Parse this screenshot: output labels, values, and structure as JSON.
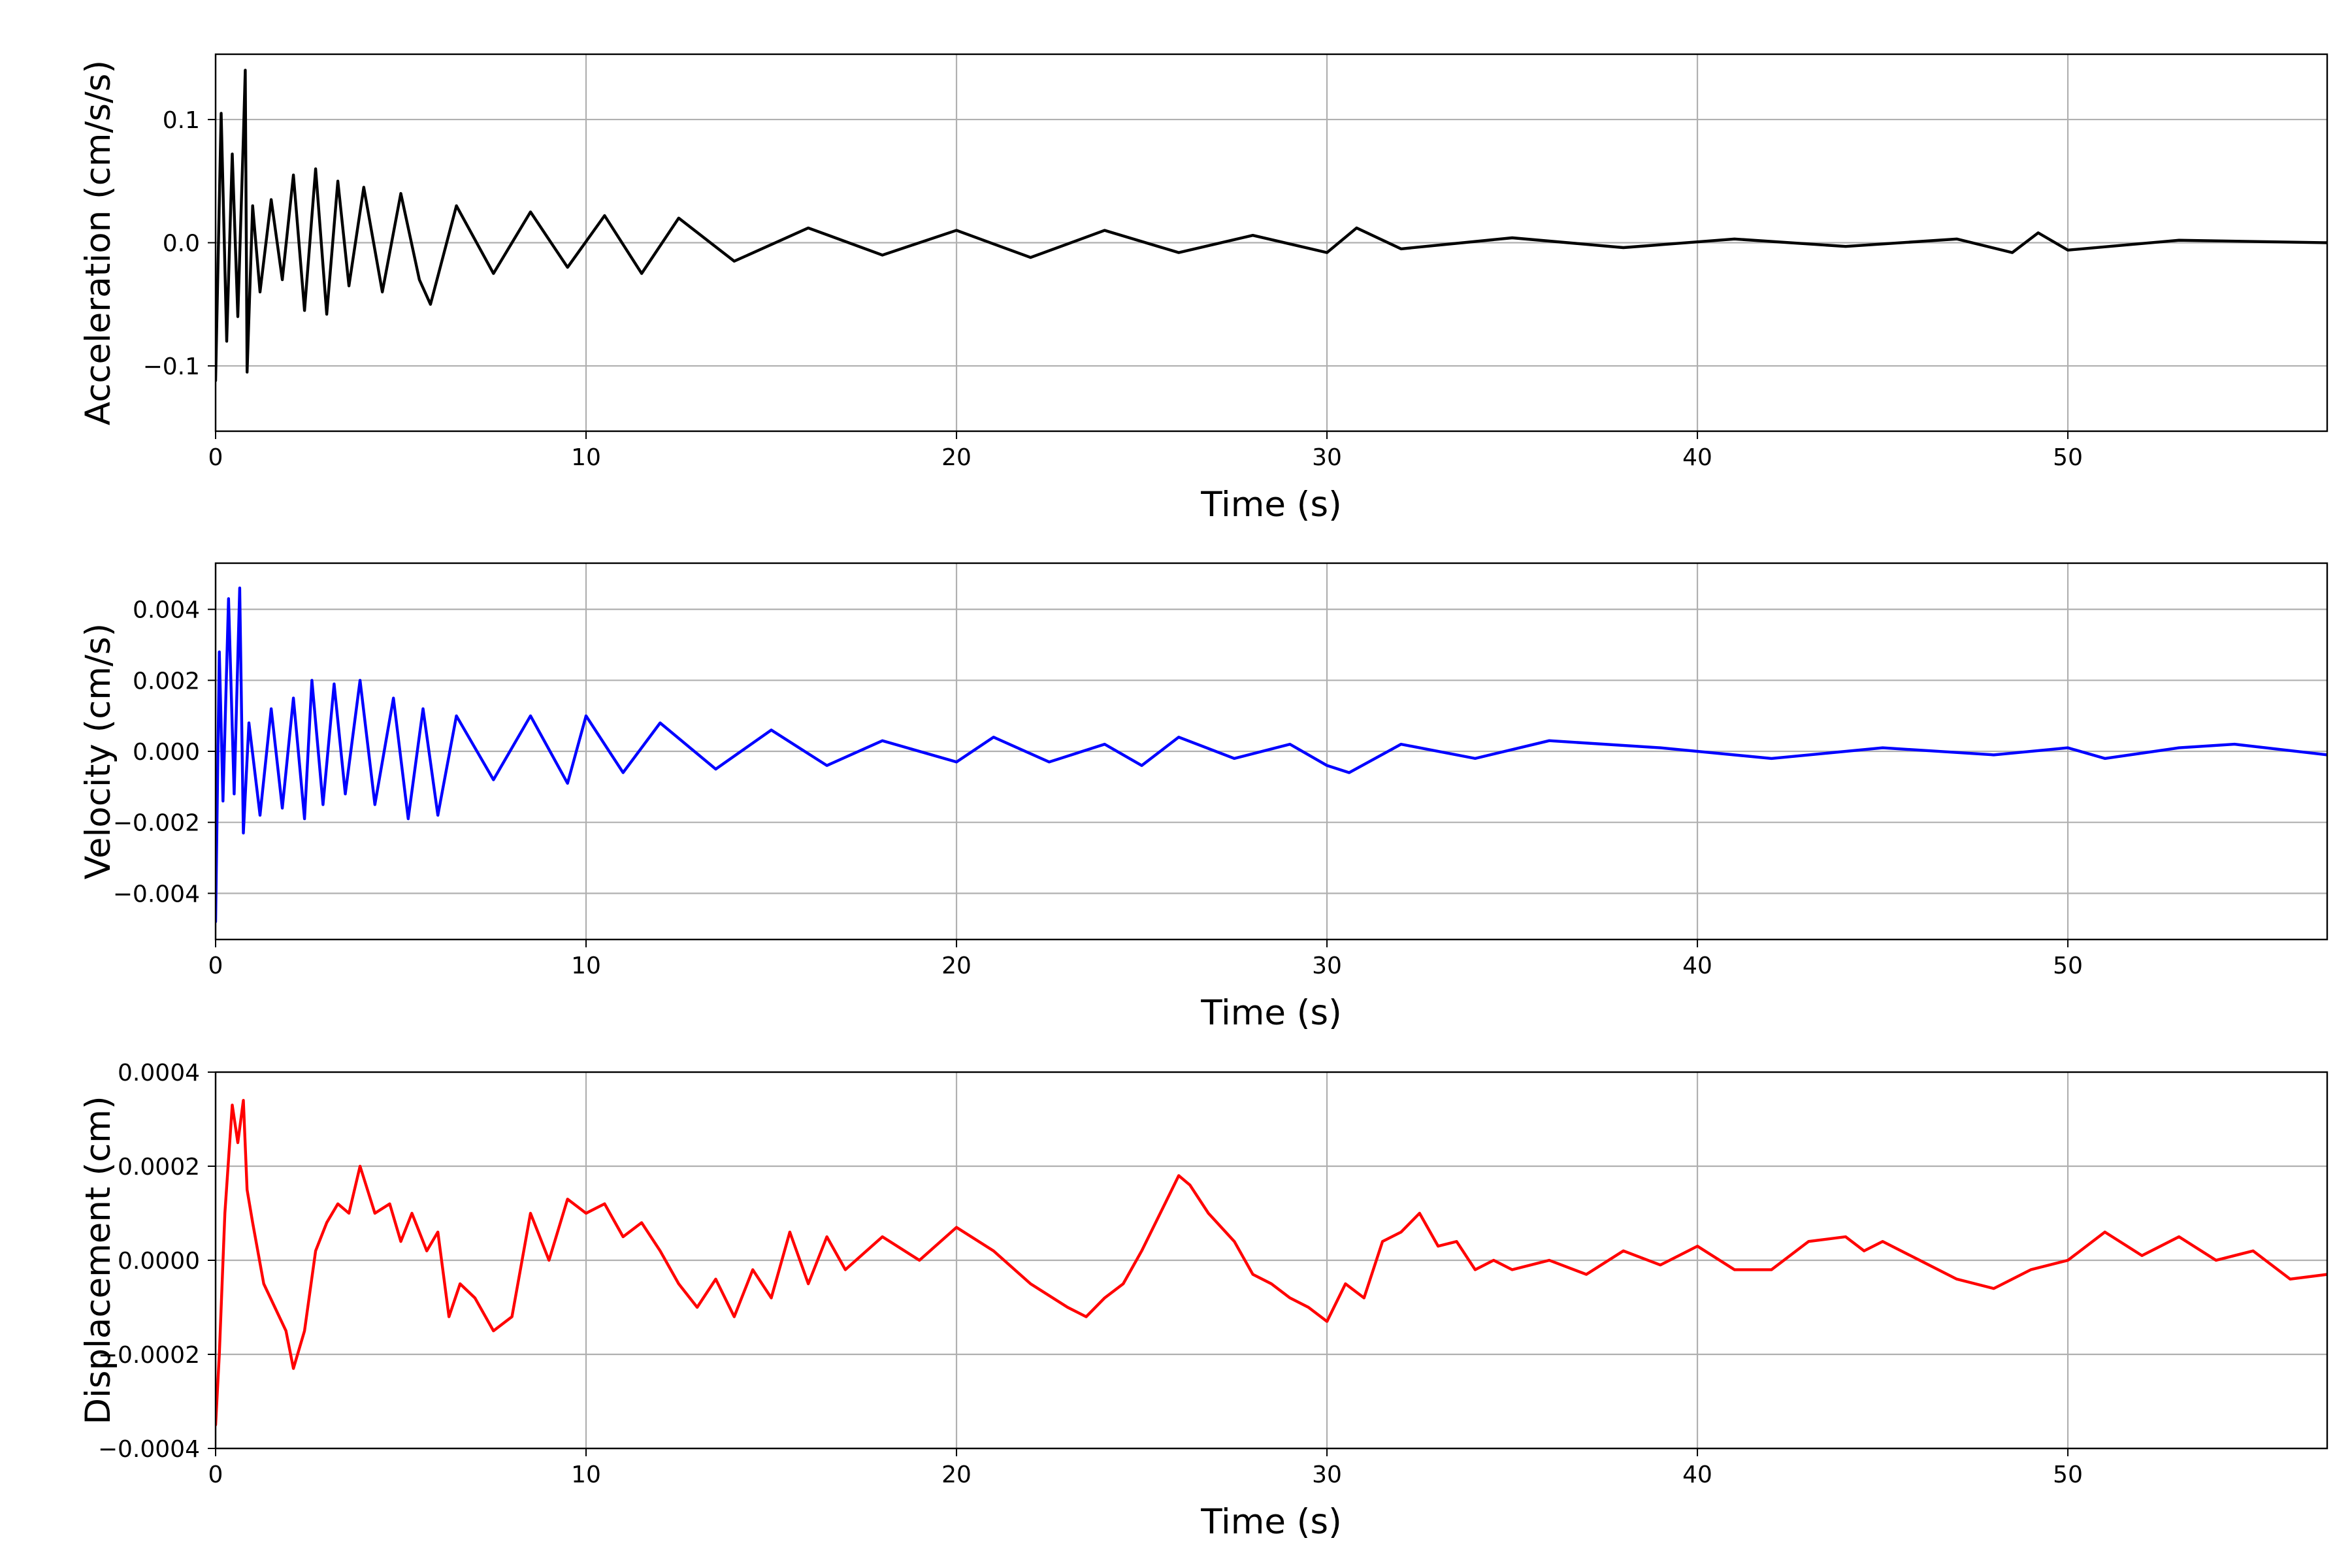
{
  "chart_data": [
    {
      "type": "line",
      "xlabel": "Time (s)",
      "ylabel": "Acceleration (cm/s/s)",
      "xlim": [
        0,
        57
      ],
      "ylim": [
        -0.153,
        0.153
      ],
      "xticks": [
        0,
        10,
        20,
        30,
        40,
        50
      ],
      "xtick_labels": [
        "0",
        "10",
        "20",
        "30",
        "40",
        "50"
      ],
      "yticks": [
        -0.1,
        0.0,
        0.1
      ],
      "ytick_labels": [
        "−0.1",
        "0.0",
        "0.1"
      ],
      "grid": true,
      "color": "#000000",
      "series": [
        {
          "x": [
            0,
            0.15,
            0.3,
            0.45,
            0.6,
            0.75,
            0.8,
            0.85,
            1.0,
            1.2,
            1.5,
            1.8,
            2.1,
            2.4,
            2.7,
            3.0,
            3.3,
            3.6,
            4.0,
            4.5,
            5.0,
            5.5,
            5.8,
            6.5,
            7.5,
            8.5,
            9.5,
            10.5,
            11.5,
            12.5,
            14.0,
            16.0,
            18.0,
            20.0,
            22.0,
            24.0,
            26.0,
            28.0,
            30.0,
            30.8,
            32.0,
            35.0,
            38.0,
            41.0,
            44.0,
            47.0,
            48.5,
            49.2,
            50.0,
            53.0,
            57.0
          ],
          "y": [
            -0.112,
            0.105,
            -0.08,
            0.072,
            -0.06,
            0.085,
            0.14,
            -0.105,
            0.03,
            -0.04,
            0.035,
            -0.03,
            0.055,
            -0.055,
            0.06,
            -0.058,
            0.05,
            -0.035,
            0.045,
            -0.04,
            0.04,
            -0.03,
            -0.05,
            0.03,
            -0.025,
            0.025,
            -0.02,
            0.022,
            -0.025,
            0.02,
            -0.015,
            0.012,
            -0.01,
            0.01,
            -0.012,
            0.01,
            -0.008,
            0.006,
            -0.008,
            0.012,
            -0.005,
            0.004,
            -0.004,
            0.003,
            -0.003,
            0.003,
            -0.008,
            0.008,
            -0.006,
            0.002,
            0.0
          ]
        }
      ]
    },
    {
      "type": "line",
      "xlabel": "Time (s)",
      "ylabel": "Velocity (cm/s)",
      "xlim": [
        0,
        57
      ],
      "ylim": [
        -0.0053,
        0.0053
      ],
      "xticks": [
        0,
        10,
        20,
        30,
        40,
        50
      ],
      "xtick_labels": [
        "0",
        "10",
        "20",
        "30",
        "40",
        "50"
      ],
      "yticks": [
        -0.004,
        -0.002,
        0.0,
        0.002,
        0.004
      ],
      "ytick_labels": [
        "−0.004",
        "−0.002",
        "0.000",
        "0.002",
        "0.004"
      ],
      "grid": true,
      "color": "#0000ff",
      "series": [
        {
          "x": [
            0,
            0.1,
            0.2,
            0.35,
            0.5,
            0.65,
            0.75,
            0.9,
            1.2,
            1.5,
            1.8,
            2.1,
            2.4,
            2.6,
            2.9,
            3.2,
            3.5,
            3.9,
            4.3,
            4.8,
            5.2,
            5.6,
            6.0,
            6.5,
            7.5,
            8.5,
            9.5,
            10.0,
            11.0,
            12.0,
            13.5,
            15.0,
            16.5,
            18.0,
            20.0,
            21.0,
            22.5,
            24.0,
            25.0,
            26.0,
            27.5,
            29.0,
            30.0,
            30.6,
            32.0,
            34.0,
            36.0,
            39.0,
            42.0,
            45.0,
            48.0,
            50.0,
            51.0,
            53.0,
            54.5,
            57.0
          ],
          "y": [
            -0.0048,
            0.0028,
            -0.0014,
            0.0043,
            -0.0012,
            0.0046,
            -0.0023,
            0.0008,
            -0.0018,
            0.0012,
            -0.0016,
            0.0015,
            -0.0019,
            0.002,
            -0.0015,
            0.0019,
            -0.0012,
            0.002,
            -0.0015,
            0.0015,
            -0.0019,
            0.0012,
            -0.0018,
            0.001,
            -0.0008,
            0.001,
            -0.0009,
            0.001,
            -0.0006,
            0.0008,
            -0.0005,
            0.0006,
            -0.0004,
            0.0003,
            -0.0003,
            0.0004,
            -0.0003,
            0.0002,
            -0.0004,
            0.0004,
            -0.0002,
            0.0002,
            -0.0004,
            -0.0006,
            0.0002,
            -0.0002,
            0.0003,
            0.0001,
            -0.0002,
            0.0001,
            -0.0001,
            0.0001,
            -0.0002,
            0.0001,
            0.0002,
            -0.0001
          ]
        }
      ]
    },
    {
      "type": "line",
      "xlabel": "Time (s)",
      "ylabel": "Displacement (cm)",
      "xlim": [
        0,
        57
      ],
      "ylim": [
        -0.0004,
        0.0004
      ],
      "xticks": [
        0,
        10,
        20,
        30,
        40,
        50
      ],
      "xtick_labels": [
        "0",
        "10",
        "20",
        "30",
        "40",
        "50"
      ],
      "yticks": [
        -0.0004,
        -0.0002,
        0.0,
        0.0002,
        0.0004
      ],
      "ytick_labels": [
        "−0.0004",
        "−0.0002",
        "0.0000",
        "0.0002",
        "0.0004"
      ],
      "grid": true,
      "color": "#ff0000",
      "series": [
        {
          "x": [
            0,
            0.1,
            0.25,
            0.45,
            0.6,
            0.75,
            0.85,
            1.0,
            1.3,
            1.6,
            1.9,
            2.1,
            2.4,
            2.7,
            3.0,
            3.3,
            3.6,
            3.9,
            4.3,
            4.7,
            5.0,
            5.3,
            5.7,
            6.0,
            6.3,
            6.6,
            7.0,
            7.5,
            8.0,
            8.5,
            9.0,
            9.5,
            10.0,
            10.5,
            11.0,
            11.5,
            12.0,
            12.5,
            13.0,
            13.5,
            14.0,
            14.5,
            15.0,
            15.5,
            16.0,
            16.5,
            17.0,
            18.0,
            19.0,
            20.0,
            21.0,
            22.0,
            23.0,
            23.5,
            24.0,
            24.5,
            25.0,
            25.5,
            26.0,
            26.3,
            26.8,
            27.5,
            28.0,
            28.5,
            29.0,
            29.5,
            30.0,
            30.5,
            31.0,
            31.5,
            32.0,
            32.5,
            33.0,
            33.5,
            34.0,
            34.5,
            35.0,
            36.0,
            37.0,
            38.0,
            39.0,
            40.0,
            41.0,
            42.0,
            43.0,
            44.0,
            44.5,
            45.0,
            46.0,
            47.0,
            48.0,
            49.0,
            50.0,
            51.0,
            52.0,
            53.0,
            54.0,
            55.0,
            56.0,
            57.0
          ],
          "y": [
            -0.00035,
            -0.0002,
            0.0001,
            0.00033,
            0.00025,
            0.00034,
            0.00015,
            8e-05,
            -5e-05,
            -0.0001,
            -0.00015,
            -0.00023,
            -0.00015,
            2e-05,
            8e-05,
            0.00012,
            0.0001,
            0.0002,
            0.0001,
            0.00012,
            4e-05,
            0.0001,
            2e-05,
            6e-05,
            -0.00012,
            -5e-05,
            -8e-05,
            -0.00015,
            -0.00012,
            0.0001,
            0.0,
            0.00013,
            0.0001,
            0.00012,
            5e-05,
            8e-05,
            2e-05,
            -5e-05,
            -0.0001,
            -4e-05,
            -0.00012,
            -2e-05,
            -8e-05,
            6e-05,
            -5e-05,
            5e-05,
            -2e-05,
            5e-05,
            0.0,
            7e-05,
            2e-05,
            -5e-05,
            -0.0001,
            -0.00012,
            -8e-05,
            -5e-05,
            2e-05,
            0.0001,
            0.00018,
            0.00016,
            0.0001,
            4e-05,
            -3e-05,
            -5e-05,
            -8e-05,
            -0.0001,
            -0.00013,
            -5e-05,
            -8e-05,
            4e-05,
            6e-05,
            0.0001,
            3e-05,
            4e-05,
            -2e-05,
            0.0,
            -2e-05,
            0.0,
            -3e-05,
            2e-05,
            -1e-05,
            3e-05,
            -2e-05,
            -2e-05,
            4e-05,
            5e-05,
            2e-05,
            4e-05,
            0.0,
            -4e-05,
            -6e-05,
            -2e-05,
            0.0,
            6e-05,
            1e-05,
            5e-05,
            0.0,
            2e-05,
            -4e-05,
            -3e-05
          ]
        }
      ]
    }
  ]
}
